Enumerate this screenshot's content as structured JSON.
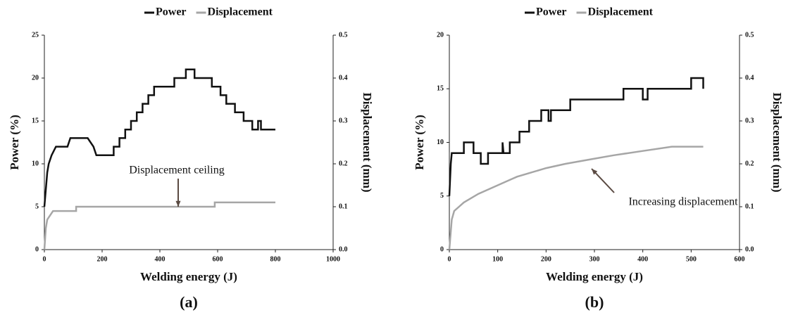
{
  "chart_data": [
    {
      "type": "line",
      "caption": "(a)",
      "x_label": "Welding energy (J)",
      "y_label": "Power (%)",
      "y2_label": "Displacement (mm)",
      "xlim": [
        0,
        1000
      ],
      "xticks": [
        0,
        200,
        400,
        600,
        800,
        1000
      ],
      "ylim": [
        0,
        25
      ],
      "yticks": [
        0,
        5,
        10,
        15,
        20,
        25
      ],
      "y2lim": [
        0,
        0.5
      ],
      "y2ticks": [
        {
          "value": 0,
          "label": "0.0"
        },
        0.1,
        0.2,
        0.3,
        0.4,
        0.5
      ],
      "annotation": "Displacement ceiling",
      "series": [
        {
          "name": "Power",
          "color": "#111111",
          "x": [
            0,
            5,
            10,
            15,
            25,
            40,
            80,
            90,
            150,
            170,
            180,
            240,
            240,
            260,
            260,
            280,
            280,
            300,
            300,
            320,
            320,
            340,
            340,
            360,
            360,
            380,
            380,
            450,
            450,
            490,
            490,
            520,
            520,
            580,
            580,
            610,
            610,
            630,
            630,
            660,
            660,
            690,
            690,
            720,
            720,
            740,
            740,
            750,
            750,
            800
          ],
          "values": [
            5,
            7,
            9,
            10,
            11,
            12,
            12,
            13,
            13,
            12,
            11,
            11,
            12,
            12,
            13,
            13,
            14,
            14,
            15,
            15,
            16,
            16,
            17,
            17,
            18,
            18,
            19,
            19,
            20,
            20,
            21,
            21,
            20,
            20,
            19,
            19,
            18,
            18,
            17,
            17,
            16,
            16,
            15,
            15,
            14,
            14,
            15,
            15,
            14,
            14
          ]
        },
        {
          "name": "Displacement",
          "color": "#a6a6a6",
          "axis": "y2",
          "x": [
            0,
            5,
            10,
            20,
            30,
            110,
            110,
            590,
            590,
            800
          ],
          "values": [
            0,
            0.05,
            0.07,
            0.08,
            0.09,
            0.09,
            0.1,
            0.1,
            0.11,
            0.11
          ]
        }
      ]
    },
    {
      "type": "line",
      "caption": "(b)",
      "x_label": "Welding energy (J)",
      "y_label": "Power (%)",
      "y2_label": "Displacement (mm)",
      "xlim": [
        0,
        600
      ],
      "xticks": [
        0,
        100,
        200,
        300,
        400,
        500,
        600
      ],
      "ylim": [
        0,
        20
      ],
      "yticks": [
        0,
        5,
        10,
        15,
        20
      ],
      "y2lim": [
        0,
        0.5
      ],
      "y2ticks": [
        {
          "value": 0,
          "label": "0.0"
        },
        0.1,
        0.2,
        0.3,
        0.4,
        0.5
      ],
      "annotation": "Increasing displacement",
      "series": [
        {
          "name": "Power",
          "color": "#111111",
          "x": [
            0,
            3,
            5,
            30,
            30,
            50,
            50,
            65,
            65,
            80,
            80,
            110,
            110,
            112,
            125,
            125,
            145,
            145,
            165,
            165,
            190,
            190,
            205,
            205,
            210,
            210,
            250,
            250,
            360,
            360,
            400,
            400,
            410,
            410,
            500,
            500,
            525,
            525
          ],
          "values": [
            5,
            8,
            9,
            9,
            10,
            10,
            9,
            9,
            8,
            8,
            9,
            9,
            10,
            9,
            9,
            10,
            10,
            11,
            11,
            12,
            12,
            13,
            13,
            12,
            12,
            13,
            13,
            14,
            14,
            15,
            15,
            14,
            14,
            15,
            15,
            16,
            16,
            15
          ]
        },
        {
          "name": "Displacement",
          "color": "#a6a6a6",
          "axis": "y2",
          "x": [
            0,
            5,
            10,
            20,
            30,
            45,
            60,
            80,
            100,
            120,
            140,
            170,
            200,
            240,
            290,
            340,
            400,
            460,
            525
          ],
          "values": [
            0,
            0.07,
            0.09,
            0.1,
            0.11,
            0.12,
            0.13,
            0.14,
            0.15,
            0.16,
            0.17,
            0.18,
            0.19,
            0.2,
            0.21,
            0.22,
            0.23,
            0.24,
            0.24
          ]
        }
      ]
    }
  ]
}
